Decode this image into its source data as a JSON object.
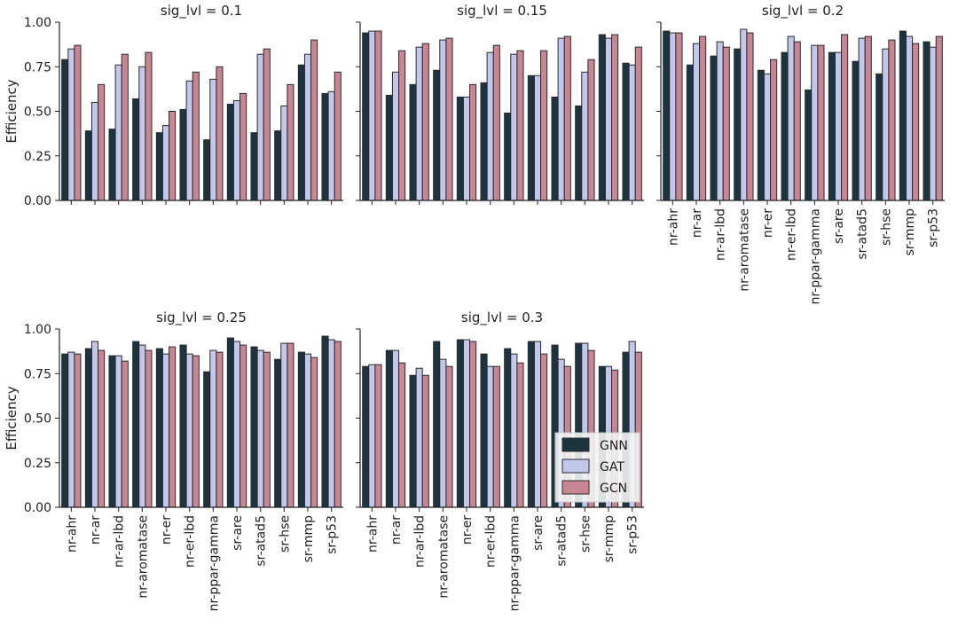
{
  "figure": {
    "ylabel": "Efficiency",
    "categories": [
      "nr-ahr",
      "nr-ar",
      "nr-ar-lbd",
      "nr-aromatase",
      "nr-er",
      "nr-er-lbd",
      "nr-ppar-gamma",
      "sr-are",
      "sr-atad5",
      "sr-hse",
      "sr-mmp",
      "sr-p53"
    ],
    "legend": [
      {
        "name": "GNN",
        "color": "#1c3340"
      },
      {
        "name": "GAT",
        "color": "#c2c8ec"
      },
      {
        "name": "GCN",
        "color": "#c88592"
      }
    ],
    "legend_position": "lower-right of sig_lvl = 0.3 panel"
  },
  "chart_data": [
    {
      "type": "bar",
      "title": "sig_lvl = 0.1",
      "ylabel": "Efficiency",
      "ylim": [
        0,
        1.0
      ],
      "yticks": [
        "0.00",
        "0.25",
        "0.50",
        "0.75",
        "1.00"
      ],
      "categories": [
        "nr-ahr",
        "nr-ar",
        "nr-ar-lbd",
        "nr-aromatase",
        "nr-er",
        "nr-er-lbd",
        "nr-ppar-gamma",
        "sr-are",
        "sr-atad5",
        "sr-hse",
        "sr-mmp",
        "sr-p53"
      ],
      "show_xticklabels": false,
      "series": [
        {
          "name": "GNN",
          "values": [
            0.79,
            0.39,
            0.4,
            0.57,
            0.38,
            0.51,
            0.34,
            0.54,
            0.38,
            0.39,
            0.76,
            0.6
          ]
        },
        {
          "name": "GAT",
          "values": [
            0.85,
            0.55,
            0.76,
            0.75,
            0.42,
            0.67,
            0.68,
            0.56,
            0.82,
            0.53,
            0.82,
            0.61
          ]
        },
        {
          "name": "GCN",
          "values": [
            0.87,
            0.65,
            0.82,
            0.83,
            0.5,
            0.72,
            0.75,
            0.6,
            0.85,
            0.65,
            0.9,
            0.72
          ]
        }
      ]
    },
    {
      "type": "bar",
      "title": "sig_lvl = 0.15",
      "ylim": [
        0,
        1.0
      ],
      "categories": [
        "nr-ahr",
        "nr-ar",
        "nr-ar-lbd",
        "nr-aromatase",
        "nr-er",
        "nr-er-lbd",
        "nr-ppar-gamma",
        "sr-are",
        "sr-atad5",
        "sr-hse",
        "sr-mmp",
        "sr-p53"
      ],
      "show_xticklabels": false,
      "series": [
        {
          "name": "GNN",
          "values": [
            0.94,
            0.59,
            0.65,
            0.73,
            0.58,
            0.66,
            0.49,
            0.7,
            0.58,
            0.53,
            0.93,
            0.77
          ]
        },
        {
          "name": "GAT",
          "values": [
            0.95,
            0.72,
            0.86,
            0.9,
            0.58,
            0.83,
            0.82,
            0.7,
            0.91,
            0.72,
            0.91,
            0.76
          ]
        },
        {
          "name": "GCN",
          "values": [
            0.95,
            0.84,
            0.88,
            0.91,
            0.65,
            0.87,
            0.84,
            0.84,
            0.92,
            0.79,
            0.93,
            0.86
          ]
        }
      ]
    },
    {
      "type": "bar",
      "title": "sig_lvl = 0.2",
      "ylim": [
        0,
        1.0
      ],
      "categories": [
        "nr-ahr",
        "nr-ar",
        "nr-ar-lbd",
        "nr-aromatase",
        "nr-er",
        "nr-er-lbd",
        "nr-ppar-gamma",
        "sr-are",
        "sr-atad5",
        "sr-hse",
        "sr-mmp",
        "sr-p53"
      ],
      "show_xticklabels": true,
      "series": [
        {
          "name": "GNN",
          "values": [
            0.95,
            0.76,
            0.81,
            0.85,
            0.73,
            0.83,
            0.62,
            0.83,
            0.78,
            0.71,
            0.95,
            0.89
          ]
        },
        {
          "name": "GAT",
          "values": [
            0.94,
            0.88,
            0.89,
            0.96,
            0.71,
            0.92,
            0.87,
            0.83,
            0.91,
            0.85,
            0.92,
            0.86
          ]
        },
        {
          "name": "GCN",
          "values": [
            0.94,
            0.92,
            0.86,
            0.94,
            0.79,
            0.89,
            0.87,
            0.93,
            0.92,
            0.9,
            0.88,
            0.92
          ]
        }
      ]
    },
    {
      "type": "bar",
      "title": "sig_lvl = 0.25",
      "ylabel": "Efficiency",
      "ylim": [
        0,
        1.0
      ],
      "yticks": [
        "0.00",
        "0.25",
        "0.50",
        "0.75",
        "1.00"
      ],
      "categories": [
        "nr-ahr",
        "nr-ar",
        "nr-ar-lbd",
        "nr-aromatase",
        "nr-er",
        "nr-er-lbd",
        "nr-ppar-gamma",
        "sr-are",
        "sr-atad5",
        "sr-hse",
        "sr-mmp",
        "sr-p53"
      ],
      "show_xticklabels": true,
      "series": [
        {
          "name": "GNN",
          "values": [
            0.86,
            0.89,
            0.85,
            0.93,
            0.89,
            0.91,
            0.76,
            0.95,
            0.9,
            0.83,
            0.87,
            0.96
          ]
        },
        {
          "name": "GAT",
          "values": [
            0.87,
            0.93,
            0.85,
            0.91,
            0.86,
            0.86,
            0.88,
            0.93,
            0.88,
            0.92,
            0.86,
            0.94
          ]
        },
        {
          "name": "GCN",
          "values": [
            0.86,
            0.88,
            0.82,
            0.88,
            0.9,
            0.85,
            0.87,
            0.91,
            0.87,
            0.92,
            0.84,
            0.93
          ]
        }
      ]
    },
    {
      "type": "bar",
      "title": "sig_lvl = 0.3",
      "ylim": [
        0,
        1.0
      ],
      "categories": [
        "nr-ahr",
        "nr-ar",
        "nr-ar-lbd",
        "nr-aromatase",
        "nr-er",
        "nr-er-lbd",
        "nr-ppar-gamma",
        "sr-are",
        "sr-atad5",
        "sr-hse",
        "sr-mmp",
        "sr-p53"
      ],
      "show_xticklabels": true,
      "series": [
        {
          "name": "GNN",
          "values": [
            0.79,
            0.88,
            0.74,
            0.93,
            0.94,
            0.86,
            0.89,
            0.93,
            0.91,
            0.92,
            0.79,
            0.87
          ]
        },
        {
          "name": "GAT",
          "values": [
            0.8,
            0.88,
            0.78,
            0.83,
            0.94,
            0.79,
            0.86,
            0.93,
            0.83,
            0.92,
            0.79,
            0.93
          ]
        },
        {
          "name": "GCN",
          "values": [
            0.8,
            0.81,
            0.74,
            0.79,
            0.93,
            0.79,
            0.81,
            0.86,
            0.79,
            0.88,
            0.77,
            0.87
          ]
        }
      ]
    }
  ]
}
